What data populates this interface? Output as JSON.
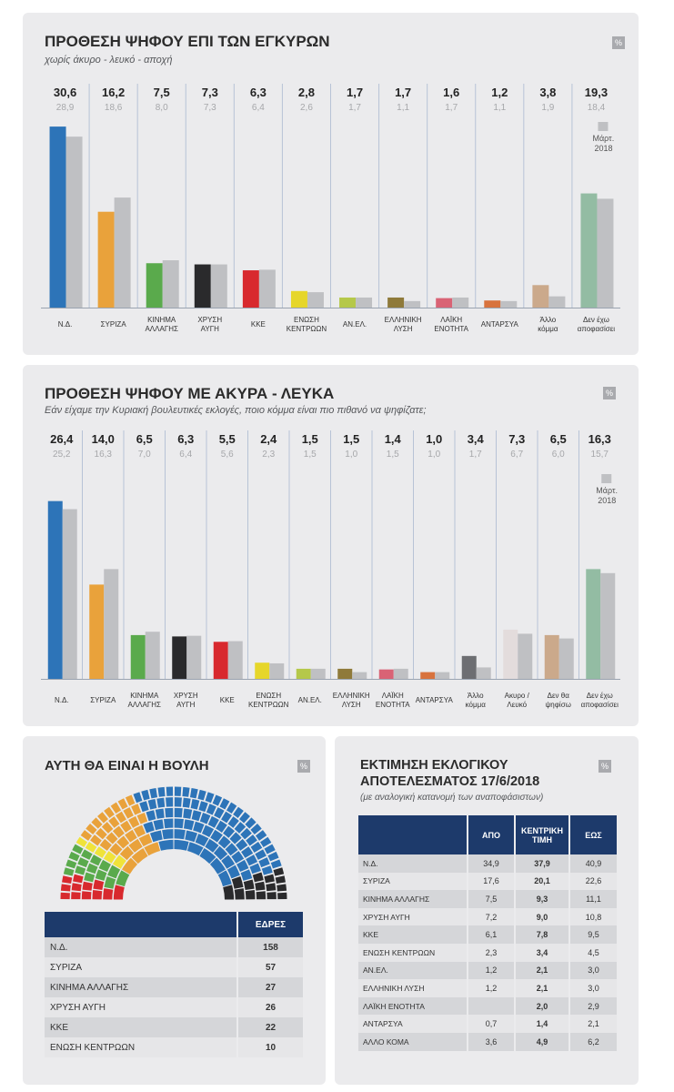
{
  "chart_data": [
    {
      "type": "bar",
      "title": "ΠΡΟΘΕΣΗ ΨΗΦΟΥ ΕΠΙ ΤΩΝ ΕΓΚΥΡΩΝ",
      "subtitle": "χωρίς άκυρο - λευκό - αποχή",
      "unit_badge": "%",
      "categories": [
        [
          "Ν.Δ."
        ],
        [
          "ΣΥΡΙΖΑ"
        ],
        [
          "ΚΙΝΗΜΑ",
          "ΑΛΛΑΓΗΣ"
        ],
        [
          "ΧΡΥΣΗ",
          "ΑΥΓΗ"
        ],
        [
          "ΚΚΕ"
        ],
        [
          "ΕΝΩΣΗ",
          "ΚΕΝΤΡΩΩΝ"
        ],
        [
          "ΑΝ.ΕΛ."
        ],
        [
          "ΕΛΛΗΝΙΚΗ",
          "ΛΥΣΗ"
        ],
        [
          "ΛΑΪΚΗ",
          "ΕΝΟΤΗΤΑ"
        ],
        [
          "ΑΝΤΑΡΣΥΑ"
        ],
        [
          "Άλλο",
          "κόμμα"
        ],
        [
          "Δεν έχω",
          "αποφασίσει"
        ]
      ],
      "series": [
        {
          "values": [
            30.6,
            16.2,
            7.5,
            7.3,
            6.3,
            2.8,
            1.7,
            1.7,
            1.6,
            1.2,
            3.8,
            19.3
          ],
          "labels": [
            "30,6",
            "16,2",
            "7,5",
            "7,3",
            "6,3",
            "2,8",
            "1,7",
            "1,7",
            "1,6",
            "1,2",
            "3,8",
            "19,3"
          ]
        },
        {
          "name": "Μάρτ. 2018",
          "values": [
            28.9,
            18.6,
            8.0,
            7.3,
            6.4,
            2.6,
            1.7,
            1.1,
            1.7,
            1.1,
            1.9,
            18.4
          ],
          "labels": [
            "28,9",
            "18,6",
            "8,0",
            "7,3",
            "6,4",
            "2,6",
            "1,7",
            "1,1",
            "1,7",
            "1,1",
            "1,9",
            "18,4"
          ]
        }
      ],
      "legend": {
        "label_line1": "Μάρτ.",
        "label_line2": "2018"
      },
      "colors": [
        "#2d74b8",
        "#e9a23b",
        "#5aaa4c",
        "#2a2a2c",
        "#d8292e",
        "#e6d62a",
        "#b5c84a",
        "#8f7a3a",
        "#d96375",
        "#d8733e",
        "#cba98b",
        "#93bca3"
      ],
      "compare_color": "#bfc0c3"
    },
    {
      "type": "bar",
      "title": "ΠΡΟΘΕΣΗ ΨΗΦΟΥ ΜΕ ΑΚΥΡΑ - ΛΕΥΚΑ",
      "subtitle": "Εάν είχαμε την Κυριακή βουλευτικές εκλογές, ποιο κόμμα είναι πιο πιθανό να ψηφίζατε;",
      "unit_badge": "%",
      "categories": [
        [
          "Ν.Δ."
        ],
        [
          "ΣΥΡΙΖΑ"
        ],
        [
          "ΚΙΝΗΜΑ",
          "ΑΛΛΑΓΗΣ"
        ],
        [
          "ΧΡΥΣΗ",
          "ΑΥΓΗ"
        ],
        [
          "ΚΚΕ"
        ],
        [
          "ΕΝΩΣΗ",
          "ΚΕΝΤΡΩΩΝ"
        ],
        [
          "ΑΝ.ΕΛ."
        ],
        [
          "ΕΛΛΗΝΙΚΗ",
          "ΛΥΣΗ"
        ],
        [
          "ΛΑΪΚΗ",
          "ΕΝΟΤΗΤΑ"
        ],
        [
          "ΑΝΤΑΡΣΥΑ"
        ],
        [
          "Άλλο",
          "κόμμα"
        ],
        [
          "Ακυρο /",
          "Λευκό"
        ],
        [
          "Δεν θα",
          "ψηφίσω"
        ],
        [
          "Δεν έχω",
          "αποφασίσει"
        ]
      ],
      "series": [
        {
          "values": [
            26.4,
            14.0,
            6.5,
            6.3,
            5.5,
            2.4,
            1.5,
            1.5,
            1.4,
            1.0,
            3.4,
            7.3,
            6.5,
            16.3
          ],
          "labels": [
            "26,4",
            "14,0",
            "6,5",
            "6,3",
            "5,5",
            "2,4",
            "1,5",
            "1,5",
            "1,4",
            "1,0",
            "3,4",
            "7,3",
            "6,5",
            "16,3"
          ]
        },
        {
          "name": "Μάρτ. 2018",
          "values": [
            25.2,
            16.3,
            7.0,
            6.4,
            5.6,
            2.3,
            1.5,
            1.0,
            1.5,
            1.0,
            1.7,
            6.7,
            6.0,
            15.7
          ],
          "labels": [
            "25,2",
            "16,3",
            "7,0",
            "6,4",
            "5,6",
            "2,3",
            "1,5",
            "1,0",
            "1,5",
            "1,0",
            "1,7",
            "6,7",
            "6,0",
            "15,7"
          ]
        }
      ],
      "legend": {
        "label_line1": "Μάρτ.",
        "label_line2": "2018"
      },
      "colors": [
        "#2d74b8",
        "#e9a23b",
        "#5aaa4c",
        "#2a2a2c",
        "#d8292e",
        "#e6d62a",
        "#b5c84a",
        "#8f7a3a",
        "#d96375",
        "#d8733e",
        "#6d6e72",
        "#e3dcdc",
        "#cba98b",
        "#93bca3"
      ],
      "compare_color": "#bfc0c3"
    },
    {
      "type": "table",
      "title": "ΑΥΤΗ ΘΑ ΕΙΝΑΙ Η ΒΟΥΛΗ",
      "unit_badge": "%",
      "column_header": "ΕΔΡΕΣ",
      "rows": [
        {
          "party": "Ν.Δ.",
          "seats": 158
        },
        {
          "party": "ΣΥΡΙΖΑ",
          "seats": 57
        },
        {
          "party": "ΚΙΝΗΜΑ ΑΛΛΑΓΗΣ",
          "seats": 27
        },
        {
          "party": "ΧΡΥΣΗ ΑΥΓΗ",
          "seats": 26
        },
        {
          "party": "ΚΚΕ",
          "seats": 22
        },
        {
          "party": "ΕΝΩΣΗ ΚΕΝΤΡΩΩΝ",
          "seats": 10
        }
      ],
      "parliament_colors": [
        "#2a2a2c",
        "#2d74b8",
        "#e9a23b",
        "#f0e33a",
        "#5aaa4c",
        "#d8292e"
      ],
      "header_color": "#1d3a6b"
    },
    {
      "type": "table",
      "title_line1": "ΕΚΤΙΜΗΣΗ ΕΚΛΟΓΙΚΟΥ",
      "title_line2": "ΑΠΟΤΕΛΕΣΜΑΤΟΣ 17/6/2018",
      "subtitle": "(με αναλογική κατανομή των αναποφάσιστων)",
      "unit_badge": "%",
      "columns": [
        "ΑΠΟ",
        "ΚΕΝΤΡΙΚΗ ΤΙΜΗ",
        "ΕΩΣ"
      ],
      "rows": [
        {
          "party": "Ν.Δ.",
          "from": "34,9",
          "central": "37,9",
          "to": "40,9"
        },
        {
          "party": "ΣΥΡΙΖΑ",
          "from": "17,6",
          "central": "20,1",
          "to": "22,6"
        },
        {
          "party": "ΚΙΝΗΜΑ ΑΛΛΑΓΗΣ",
          "from": "7,5",
          "central": "9,3",
          "to": "11,1"
        },
        {
          "party": "ΧΡΥΣΗ ΑΥΓΗ",
          "from": "7,2",
          "central": "9,0",
          "to": "10,8"
        },
        {
          "party": "ΚΚΕ",
          "from": "6,1",
          "central": "7,8",
          "to": "9,5"
        },
        {
          "party": "ΕΝΩΣΗ ΚΕΝΤΡΩΩΝ",
          "from": "2,3",
          "central": "3,4",
          "to": "4,5"
        },
        {
          "party": "ΑΝ.ΕΛ.",
          "from": "1,2",
          "central": "2,1",
          "to": "3,0"
        },
        {
          "party": "ΕΛΛΗΝΙΚΗ ΛΥΣΗ",
          "from": "1,2",
          "central": "2,1",
          "to": "3,0"
        },
        {
          "party": "ΛΑΪΚΗ ΕΝΟΤΗΤΑ",
          "from": "",
          "central": "2,0",
          "to": "2,9"
        },
        {
          "party": "ΑΝΤΑΡΣΥΑ",
          "from": "0,7",
          "central": "1,4",
          "to": "2,1"
        },
        {
          "party": "ΑΛΛΟ ΚΟΜΑ",
          "from": "3,6",
          "central": "4,9",
          "to": "6,2"
        }
      ],
      "header_color": "#1d3a6b"
    }
  ]
}
